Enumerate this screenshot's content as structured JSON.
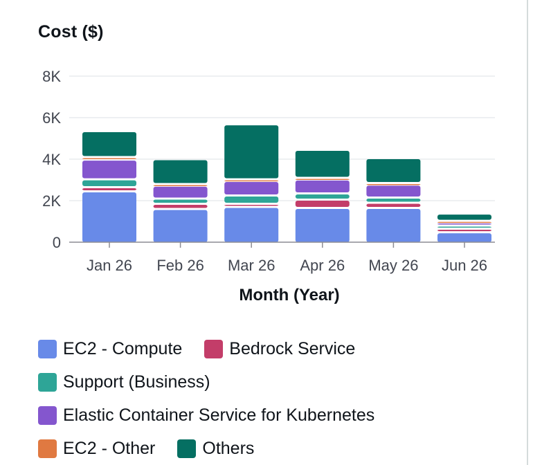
{
  "chart_data": {
    "type": "bar",
    "stacked": true,
    "title": "Cost ($)",
    "xlabel": "Month (Year)",
    "ylabel": "",
    "ylim": [
      0,
      8000
    ],
    "yticks": [
      0,
      2000,
      4000,
      6000,
      8000
    ],
    "ytick_labels": [
      "0",
      "2K",
      "4K",
      "6K",
      "8K"
    ],
    "grid": true,
    "legend_position": "bottom",
    "categories": [
      "Jan 26",
      "Feb 26",
      "Mar 26",
      "Apr 26",
      "May 26",
      "Jun 26"
    ],
    "series": [
      {
        "name": "EC2 - Compute",
        "color": "#688ae8",
        "values": [
          2450,
          1600,
          1700,
          1650,
          1650,
          480
        ]
      },
      {
        "name": "Bedrock Service",
        "color": "#c33d69",
        "values": [
          200,
          250,
          150,
          400,
          250,
          170
        ]
      },
      {
        "name": "Support (Business)",
        "color": "#2ea597",
        "values": [
          380,
          250,
          400,
          300,
          250,
          150
        ]
      },
      {
        "name": "Elastic Container Service for Kubernetes",
        "color": "#8456ce",
        "values": [
          950,
          620,
          700,
          670,
          620,
          150
        ]
      },
      {
        "name": "EC2 - Other",
        "color": "#e07941",
        "values": [
          120,
          80,
          80,
          80,
          80,
          80
        ]
      },
      {
        "name": "Others",
        "color": "#056f62",
        "values": [
          1200,
          1150,
          2600,
          1300,
          1150,
          300
        ]
      }
    ]
  },
  "legend_rows": [
    [
      0,
      1
    ],
    [
      2
    ],
    [
      3
    ],
    [
      4,
      5
    ]
  ]
}
